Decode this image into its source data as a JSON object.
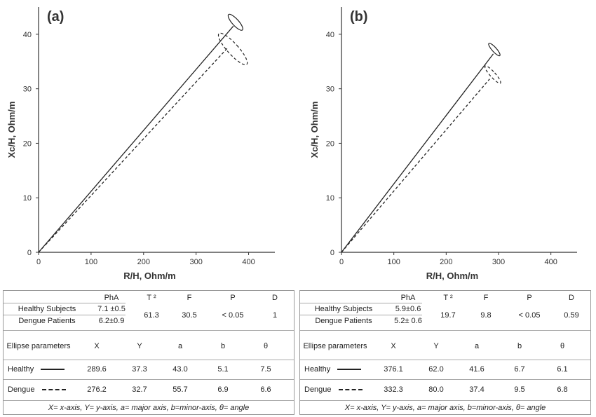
{
  "chart_data": [
    {
      "panel_label": "(a)",
      "type": "line",
      "xlabel": "R/H, Ohm/m",
      "ylabel": "Xc/H, Ohm/m",
      "xlim": [
        0,
        450
      ],
      "ylim": [
        0,
        45
      ],
      "xticks": [
        "0",
        "100",
        "200",
        "300",
        "400"
      ],
      "yticks": [
        "0",
        "10",
        "20",
        "30",
        "40"
      ],
      "series": [
        {
          "style": "solid",
          "points": [
            [
              0,
              0
            ],
            [
              371,
              41.5
            ]
          ],
          "ellipse": {
            "cx": 375,
            "cy": 42.2,
            "rx": 16,
            "ry": 1.9
          }
        },
        {
          "style": "dashed",
          "points": [
            [
              0,
              0
            ],
            [
              360,
              37.5
            ]
          ],
          "ellipse": {
            "cx": 370,
            "cy": 37.3,
            "rx": 27,
            "ry": 3.8
          }
        }
      ],
      "table": {
        "headers": [
          "PhA",
          "T ²",
          "F",
          "P",
          "D"
        ],
        "rows": [
          {
            "label": "Healthy Subjects",
            "pha": "7.1 ±0.5"
          },
          {
            "label": "Dengue Patients",
            "pha": "6.2±0.9"
          }
        ],
        "stats": [
          "61.3",
          "30.5",
          "< 0.05",
          "1"
        ],
        "ellipse_header": [
          "Ellipse parameters",
          "X",
          "Y",
          "a",
          "b",
          "θ"
        ],
        "ellipse_rows": [
          {
            "label": "Healthy",
            "style": "solid",
            "values": [
              "289.6",
              "37.3",
              "43.0",
              "5.1",
              "7.5"
            ]
          },
          {
            "label": "Dengue",
            "style": "dashed",
            "values": [
              "276.2",
              "32.7",
              "55.7",
              "6.9",
              "6.6"
            ]
          }
        ],
        "footnote": "X= x-axis, Y= y-axis, a= major axis, b=minor-axis, θ= angle"
      }
    },
    {
      "panel_label": "(b)",
      "type": "line",
      "xlabel": "R/H, Ohm/m",
      "ylabel": "Xc/H, Ohm/m",
      "xlim": [
        0,
        450
      ],
      "ylim": [
        0,
        45
      ],
      "xticks": [
        "0",
        "100",
        "200",
        "300",
        "400"
      ],
      "yticks": [
        "0",
        "10",
        "20",
        "30",
        "40"
      ],
      "series": [
        {
          "style": "solid",
          "points": [
            [
              0,
              0
            ],
            [
              290,
              36.4
            ]
          ],
          "ellipse": {
            "cx": 292,
            "cy": 37.2,
            "rx": 11,
            "ry": 1.5
          }
        },
        {
          "style": "dashed",
          "points": [
            [
              0,
              0
            ],
            [
              283,
              31.8
            ]
          ],
          "ellipse": {
            "cx": 289,
            "cy": 32.6,
            "rx": 13,
            "ry": 2.1
          }
        }
      ],
      "table": {
        "headers": [
          "PhA",
          "T ²",
          "F",
          "P",
          "D"
        ],
        "rows": [
          {
            "label": "Healthy Subjects",
            "pha": "5.9±0.6"
          },
          {
            "label": "Dengue Patients",
            "pha": "5.2± 0.6"
          }
        ],
        "stats": [
          "19.7",
          "9.8",
          "< 0.05",
          "0.59"
        ],
        "ellipse_header": [
          "Ellipse parameters",
          "X",
          "Y",
          "a",
          "b",
          "θ"
        ],
        "ellipse_rows": [
          {
            "label": "Healthy",
            "style": "solid",
            "values": [
              "376.1",
              "62.0",
              "41.6",
              "6.7",
              "6.1"
            ]
          },
          {
            "label": "Dengue",
            "style": "dashed",
            "values": [
              "332.3",
              "80.0",
              "37.4",
              "9.5",
              "6.8"
            ]
          }
        ],
        "footnote": "X= x-axis, Y= y-axis, a= major axis, b=minor-axis, θ= angle"
      }
    }
  ]
}
